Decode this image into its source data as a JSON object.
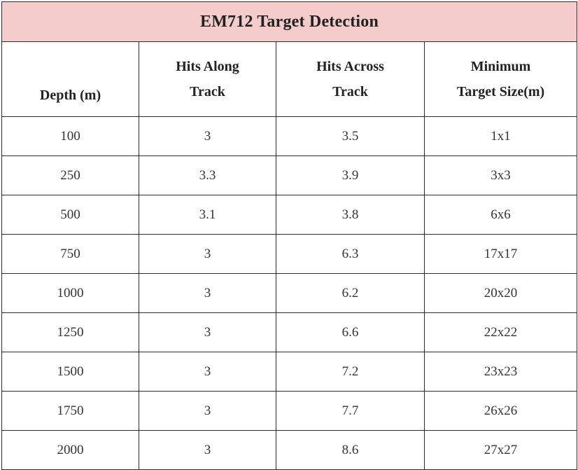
{
  "table": {
    "title": "EM712 Target Detection",
    "headers": [
      "Depth (m)",
      "Hits Along Track",
      "Hits Across Track",
      "Minimum Target Size(m)"
    ],
    "header_lines": [
      [
        "Depth (m)"
      ],
      [
        "Hits Along",
        "Track"
      ],
      [
        "Hits Across",
        "Track"
      ],
      [
        "Minimum",
        "Target Size(m)"
      ]
    ],
    "title_bg_color": "#f4cccc",
    "rows": [
      [
        "100",
        "3",
        "3.5",
        "1x1"
      ],
      [
        "250",
        "3.3",
        "3.9",
        "3x3"
      ],
      [
        "500",
        "3.1",
        "3.8",
        "6x6"
      ],
      [
        "750",
        "3",
        "6.3",
        "17x17"
      ],
      [
        "1000",
        "3",
        "6.2",
        "20x20"
      ],
      [
        "1250",
        "3",
        "6.6",
        "22x22"
      ],
      [
        "1500",
        "3",
        "7.2",
        "23x23"
      ],
      [
        "1750",
        "3",
        "7.7",
        "26x26"
      ],
      [
        "2000",
        "3",
        "8.6",
        "27x27"
      ]
    ]
  }
}
